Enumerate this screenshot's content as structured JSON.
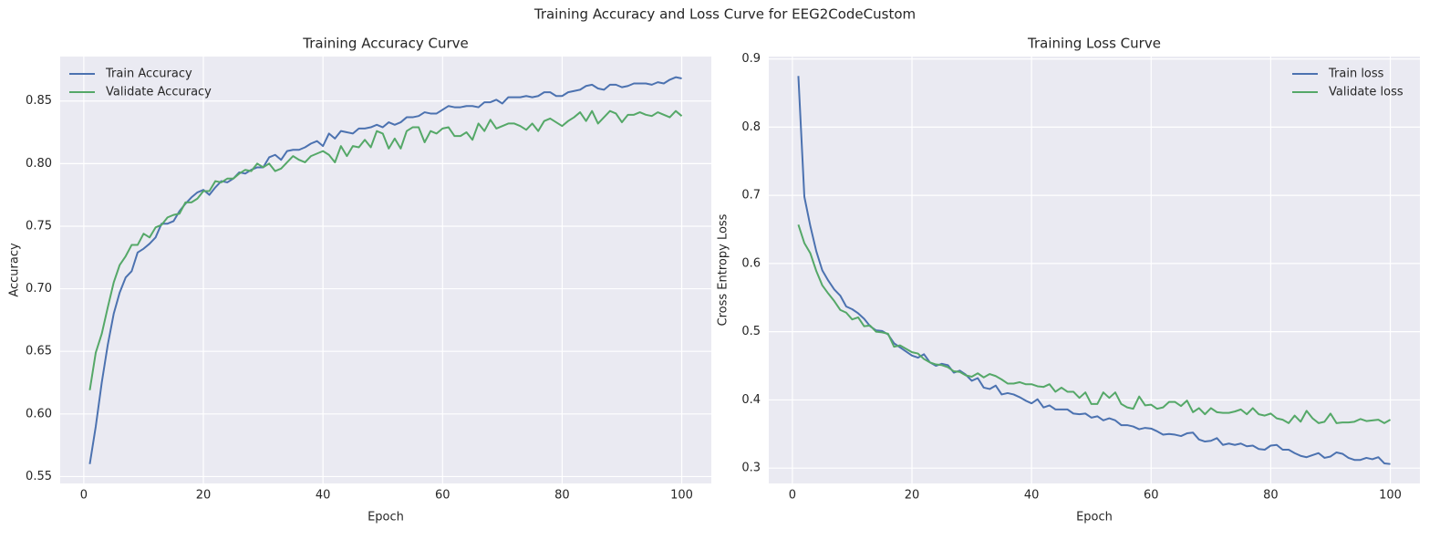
{
  "title": "Training Accuracy and Loss Curve for EEG2CodeCustom",
  "chart_data": [
    {
      "type": "line",
      "title": "Training Accuracy Curve",
      "x_label": "Epoch",
      "y_label": "Accuracy",
      "x": [
        1,
        2,
        3,
        4,
        5,
        6,
        7,
        8,
        9,
        10,
        11,
        12,
        13,
        14,
        15,
        16,
        17,
        18,
        19,
        20,
        21,
        22,
        23,
        24,
        25,
        26,
        27,
        28,
        29,
        30,
        31,
        32,
        33,
        34,
        35,
        36,
        37,
        38,
        39,
        40,
        41,
        42,
        43,
        44,
        45,
        46,
        47,
        48,
        49,
        50,
        51,
        52,
        53,
        54,
        55,
        56,
        57,
        58,
        59,
        60,
        61,
        62,
        63,
        64,
        65,
        66,
        67,
        68,
        69,
        70,
        71,
        72,
        73,
        74,
        75,
        76,
        77,
        78,
        79,
        80,
        81,
        82,
        83,
        84,
        85,
        86,
        87,
        88,
        89,
        90,
        91,
        92,
        93,
        94,
        95,
        96,
        97,
        98,
        99,
        100
      ],
      "series": [
        {
          "name": "Train Accuracy",
          "color": "#4c72b0",
          "values": [
            0.56,
            0.59,
            0.625,
            0.655,
            0.68,
            0.697,
            0.709,
            0.714,
            0.729,
            0.732,
            0.736,
            0.741,
            0.752,
            0.752,
            0.754,
            0.762,
            0.768,
            0.773,
            0.777,
            0.779,
            0.775,
            0.781,
            0.786,
            0.785,
            0.788,
            0.793,
            0.792,
            0.795,
            0.797,
            0.797,
            0.805,
            0.807,
            0.803,
            0.81,
            0.811,
            0.811,
            0.813,
            0.816,
            0.818,
            0.814,
            0.824,
            0.82,
            0.826,
            0.825,
            0.824,
            0.828,
            0.828,
            0.829,
            0.831,
            0.829,
            0.833,
            0.831,
            0.833,
            0.837,
            0.837,
            0.838,
            0.841,
            0.84,
            0.84,
            0.843,
            0.846,
            0.845,
            0.845,
            0.846,
            0.846,
            0.845,
            0.849,
            0.849,
            0.851,
            0.848,
            0.853,
            0.853,
            0.853,
            0.854,
            0.853,
            0.854,
            0.857,
            0.857,
            0.854,
            0.854,
            0.857,
            0.858,
            0.859,
            0.862,
            0.863,
            0.86,
            0.859,
            0.863,
            0.863,
            0.861,
            0.862,
            0.864,
            0.864,
            0.864,
            0.863,
            0.865,
            0.864,
            0.867,
            0.869,
            0.868
          ]
        },
        {
          "name": "Validate Accuracy",
          "color": "#55a868",
          "values": [
            0.619,
            0.649,
            0.664,
            0.685,
            0.705,
            0.719,
            0.726,
            0.735,
            0.735,
            0.744,
            0.741,
            0.749,
            0.751,
            0.757,
            0.759,
            0.76,
            0.769,
            0.769,
            0.772,
            0.778,
            0.778,
            0.786,
            0.785,
            0.788,
            0.788,
            0.792,
            0.795,
            0.794,
            0.8,
            0.797,
            0.8,
            0.794,
            0.796,
            0.801,
            0.806,
            0.803,
            0.801,
            0.806,
            0.808,
            0.81,
            0.807,
            0.801,
            0.814,
            0.806,
            0.814,
            0.813,
            0.819,
            0.813,
            0.826,
            0.824,
            0.812,
            0.82,
            0.812,
            0.826,
            0.829,
            0.829,
            0.817,
            0.826,
            0.824,
            0.828,
            0.829,
            0.822,
            0.822,
            0.825,
            0.819,
            0.832,
            0.826,
            0.835,
            0.828,
            0.83,
            0.832,
            0.832,
            0.83,
            0.827,
            0.832,
            0.826,
            0.834,
            0.836,
            0.833,
            0.83,
            0.834,
            0.837,
            0.841,
            0.834,
            0.842,
            0.832,
            0.837,
            0.842,
            0.84,
            0.833,
            0.839,
            0.839,
            0.841,
            0.839,
            0.838,
            0.841,
            0.839,
            0.837,
            0.842,
            0.838
          ]
        }
      ],
      "xlim": [
        -3.95,
        104.95
      ],
      "xticks": [
        0,
        20,
        40,
        60,
        80,
        100
      ],
      "ylim": [
        0.5445,
        0.8855
      ],
      "yticks": [
        0.55,
        {
          "value": 0.6,
          "label": "0.60"
        },
        0.65,
        {
          "value": 0.7,
          "label": "0.70"
        },
        0.75,
        {
          "value": 0.8,
          "label": "0.80"
        },
        0.85
      ],
      "grid": true,
      "legend": "upper left"
    },
    {
      "type": "line",
      "title": "Training Loss Curve",
      "x_label": "Epoch",
      "y_label": "Cross Entropy Loss",
      "x": [
        1,
        2,
        3,
        4,
        5,
        6,
        7,
        8,
        9,
        10,
        11,
        12,
        13,
        14,
        15,
        16,
        17,
        18,
        19,
        20,
        21,
        22,
        23,
        24,
        25,
        26,
        27,
        28,
        29,
        30,
        31,
        32,
        33,
        34,
        35,
        36,
        37,
        38,
        39,
        40,
        41,
        42,
        43,
        44,
        45,
        46,
        47,
        48,
        49,
        50,
        51,
        52,
        53,
        54,
        55,
        56,
        57,
        58,
        59,
        60,
        61,
        62,
        63,
        64,
        65,
        66,
        67,
        68,
        69,
        70,
        71,
        72,
        73,
        74,
        75,
        76,
        77,
        78,
        79,
        80,
        81,
        82,
        83,
        84,
        85,
        86,
        87,
        88,
        89,
        90,
        91,
        92,
        93,
        94,
        95,
        96,
        97,
        98,
        99,
        100
      ],
      "series": [
        {
          "name": "Train loss",
          "color": "#4c72b0",
          "values": [
            0.875,
            0.698,
            0.655,
            0.618,
            0.59,
            0.575,
            0.562,
            0.553,
            0.537,
            0.533,
            0.527,
            0.519,
            0.508,
            0.502,
            0.501,
            0.496,
            0.483,
            0.477,
            0.471,
            0.465,
            0.462,
            0.467,
            0.455,
            0.45,
            0.453,
            0.451,
            0.44,
            0.443,
            0.437,
            0.428,
            0.432,
            0.418,
            0.416,
            0.421,
            0.408,
            0.41,
            0.408,
            0.404,
            0.399,
            0.395,
            0.401,
            0.389,
            0.392,
            0.386,
            0.386,
            0.386,
            0.38,
            0.379,
            0.38,
            0.374,
            0.376,
            0.37,
            0.373,
            0.37,
            0.363,
            0.363,
            0.361,
            0.357,
            0.359,
            0.358,
            0.354,
            0.349,
            0.35,
            0.349,
            0.347,
            0.351,
            0.352,
            0.342,
            0.339,
            0.34,
            0.344,
            0.334,
            0.336,
            0.334,
            0.336,
            0.332,
            0.333,
            0.328,
            0.327,
            0.333,
            0.334,
            0.327,
            0.327,
            0.322,
            0.318,
            0.316,
            0.319,
            0.322,
            0.315,
            0.317,
            0.323,
            0.321,
            0.315,
            0.312,
            0.312,
            0.315,
            0.313,
            0.316,
            0.307,
            0.306
          ]
        },
        {
          "name": "Validate loss",
          "color": "#55a868",
          "values": [
            0.657,
            0.63,
            0.615,
            0.589,
            0.568,
            0.556,
            0.545,
            0.532,
            0.528,
            0.518,
            0.521,
            0.508,
            0.509,
            0.5,
            0.499,
            0.497,
            0.478,
            0.48,
            0.475,
            0.47,
            0.468,
            0.46,
            0.455,
            0.452,
            0.451,
            0.448,
            0.442,
            0.441,
            0.436,
            0.434,
            0.439,
            0.433,
            0.438,
            0.435,
            0.43,
            0.424,
            0.424,
            0.426,
            0.423,
            0.423,
            0.42,
            0.419,
            0.423,
            0.412,
            0.418,
            0.412,
            0.412,
            0.403,
            0.411,
            0.394,
            0.394,
            0.411,
            0.403,
            0.411,
            0.394,
            0.389,
            0.387,
            0.405,
            0.392,
            0.393,
            0.387,
            0.389,
            0.397,
            0.397,
            0.391,
            0.399,
            0.382,
            0.388,
            0.379,
            0.388,
            0.382,
            0.381,
            0.381,
            0.383,
            0.386,
            0.379,
            0.388,
            0.379,
            0.377,
            0.38,
            0.373,
            0.371,
            0.366,
            0.377,
            0.368,
            0.384,
            0.373,
            0.366,
            0.368,
            0.38,
            0.366,
            0.367,
            0.367,
            0.368,
            0.372,
            0.369,
            0.37,
            0.371,
            0.366,
            0.371
          ]
        }
      ],
      "xlim": [
        -3.95,
        104.95
      ],
      "xticks": [
        0,
        20,
        40,
        60,
        80,
        100
      ],
      "ylim": [
        0.2775,
        0.9035
      ],
      "yticks": [
        0.3,
        0.4,
        0.5,
        0.6,
        0.7,
        0.8,
        0.9
      ],
      "grid": true,
      "legend": "upper right"
    }
  ]
}
